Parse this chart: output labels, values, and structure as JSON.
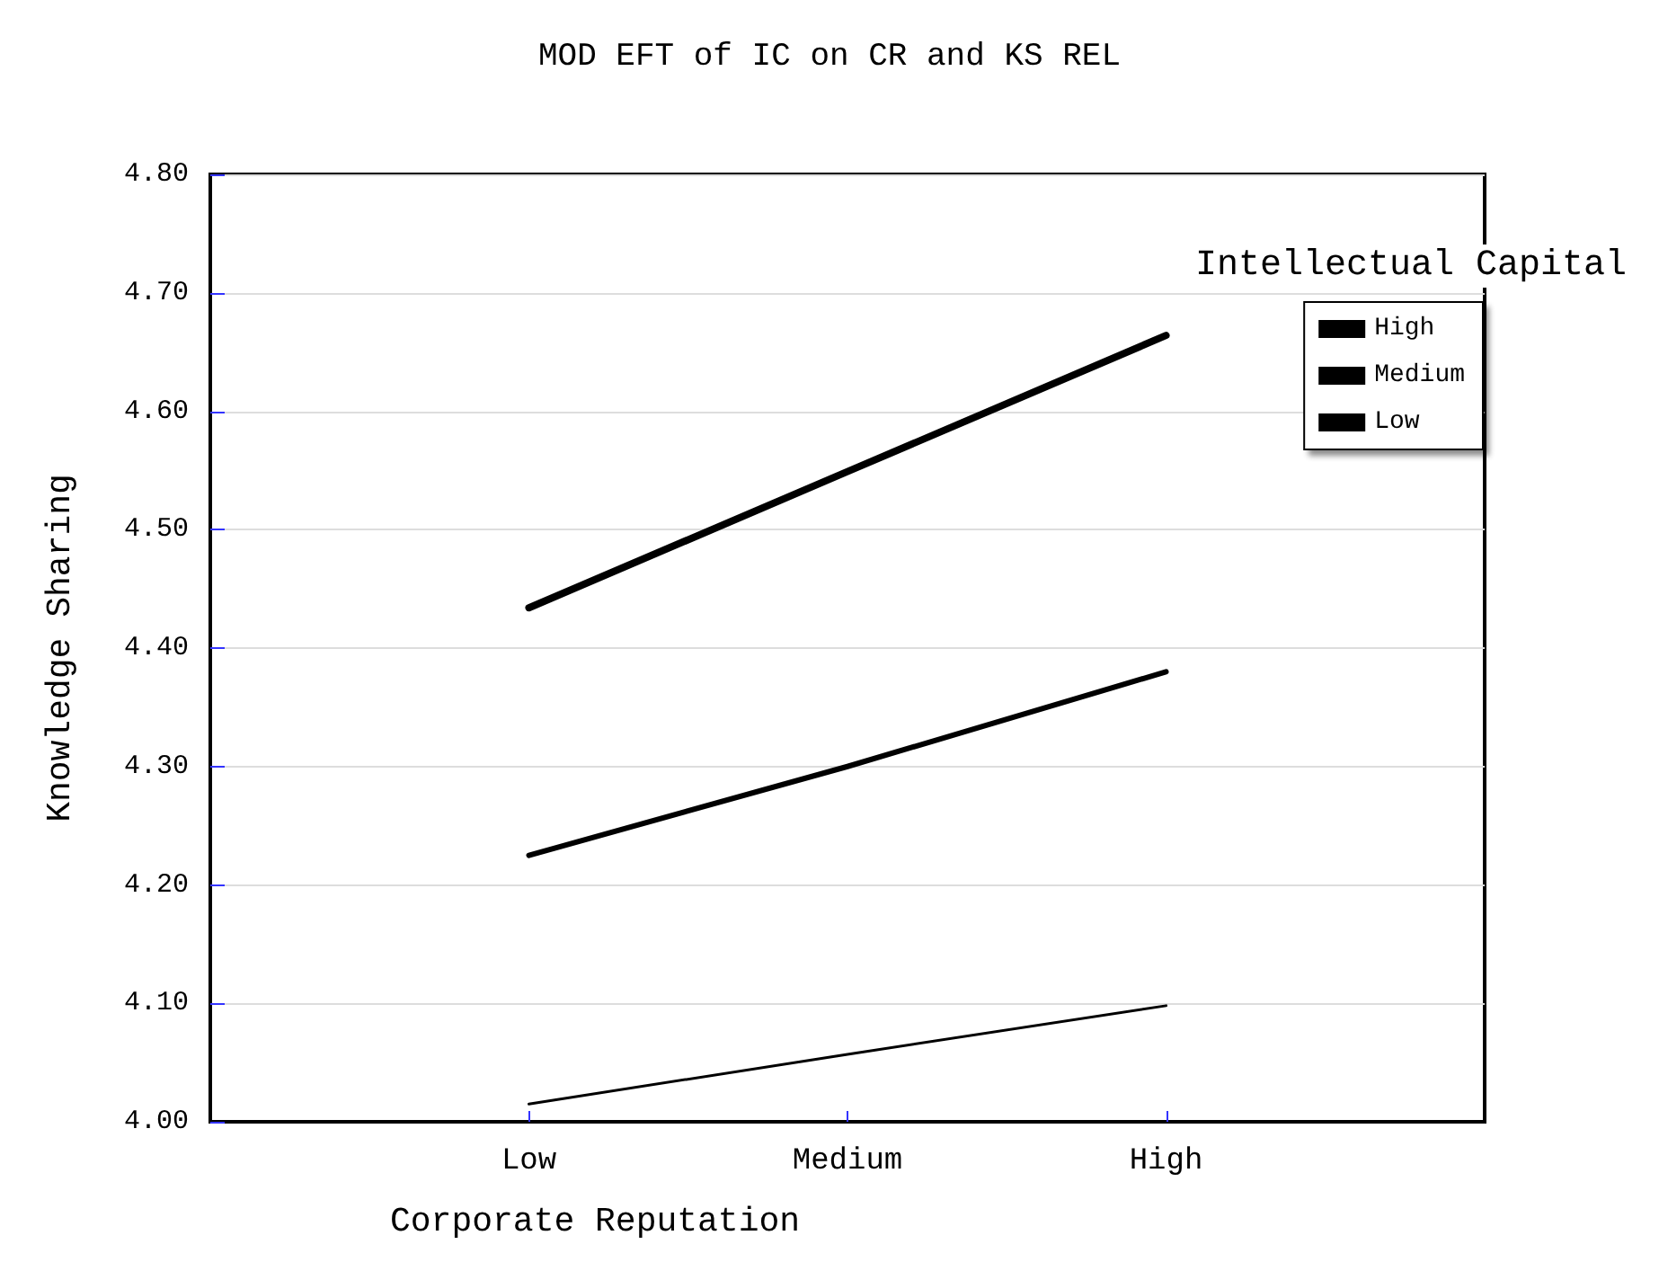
{
  "chart_data": {
    "type": "line",
    "title": "MOD EFT of IC on CR and KS REL",
    "xlabel": "Corporate Reputation",
    "ylabel": "Knowledge Sharing",
    "legend_title": "Intellectual Capital",
    "categories": [
      null,
      "Low",
      "Medium",
      "High",
      null
    ],
    "series": [
      {
        "name": "High",
        "color": "#000000",
        "values": [
          null,
          4.434,
          4.549,
          4.664,
          null
        ]
      },
      {
        "name": "Medium",
        "color": "#000000",
        "values": [
          null,
          4.225,
          4.3,
          4.38,
          null
        ]
      },
      {
        "name": "Low",
        "color": "#000000",
        "values": [
          null,
          4.015,
          4.057,
          4.098,
          null
        ]
      }
    ],
    "ylim": [
      4.0,
      4.8
    ],
    "yticks": [
      {
        "value": 4.0,
        "label": "4.00"
      },
      {
        "value": 4.1,
        "label": "4.10"
      },
      {
        "value": 4.2,
        "label": "4.20"
      },
      {
        "value": 4.3,
        "label": "4.30"
      },
      {
        "value": 4.4,
        "label": "4.40"
      },
      {
        "value": 4.5,
        "label": "4.50"
      },
      {
        "value": 4.6,
        "label": "4.60"
      },
      {
        "value": 4.7,
        "label": "4.70"
      },
      {
        "value": 4.8,
        "label": "4.80"
      }
    ],
    "grid": "y",
    "legend": "top right",
    "marker": "none",
    "line_style": "solid"
  }
}
